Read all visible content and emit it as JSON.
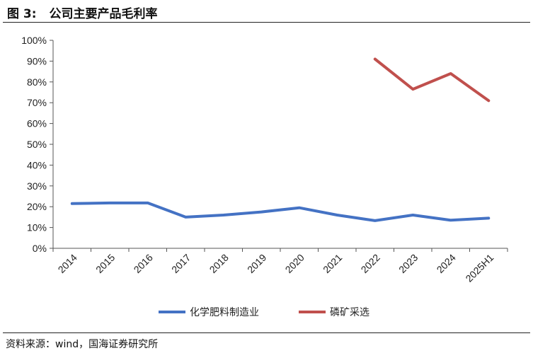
{
  "figure": {
    "number": "图 3:",
    "title": "公司主要产品毛利率",
    "source": "资料来源：wind，国海证券研究所"
  },
  "chart_data": {
    "type": "line",
    "categories": [
      "2014",
      "2015",
      "2016",
      "2017",
      "2018",
      "2019",
      "2020",
      "2021",
      "2022",
      "2023",
      "2024",
      "2025H1"
    ],
    "y_ticks": [
      "0%",
      "10%",
      "20%",
      "30%",
      "40%",
      "50%",
      "60%",
      "70%",
      "80%",
      "90%",
      "100%"
    ],
    "ylim": [
      0,
      100
    ],
    "grid": false,
    "legend_position": "bottom",
    "series": [
      {
        "name": "化学肥料制造业",
        "color": "#4472C4",
        "values": [
          21.5,
          21.8,
          21.8,
          15.0,
          16.0,
          17.5,
          19.5,
          16.0,
          13.3,
          16.0,
          13.5,
          14.5
        ]
      },
      {
        "name": "磷矿采选",
        "color": "#C0504D",
        "values": [
          null,
          null,
          null,
          null,
          null,
          null,
          null,
          null,
          91.0,
          76.5,
          84.0,
          71.0
        ]
      }
    ]
  }
}
